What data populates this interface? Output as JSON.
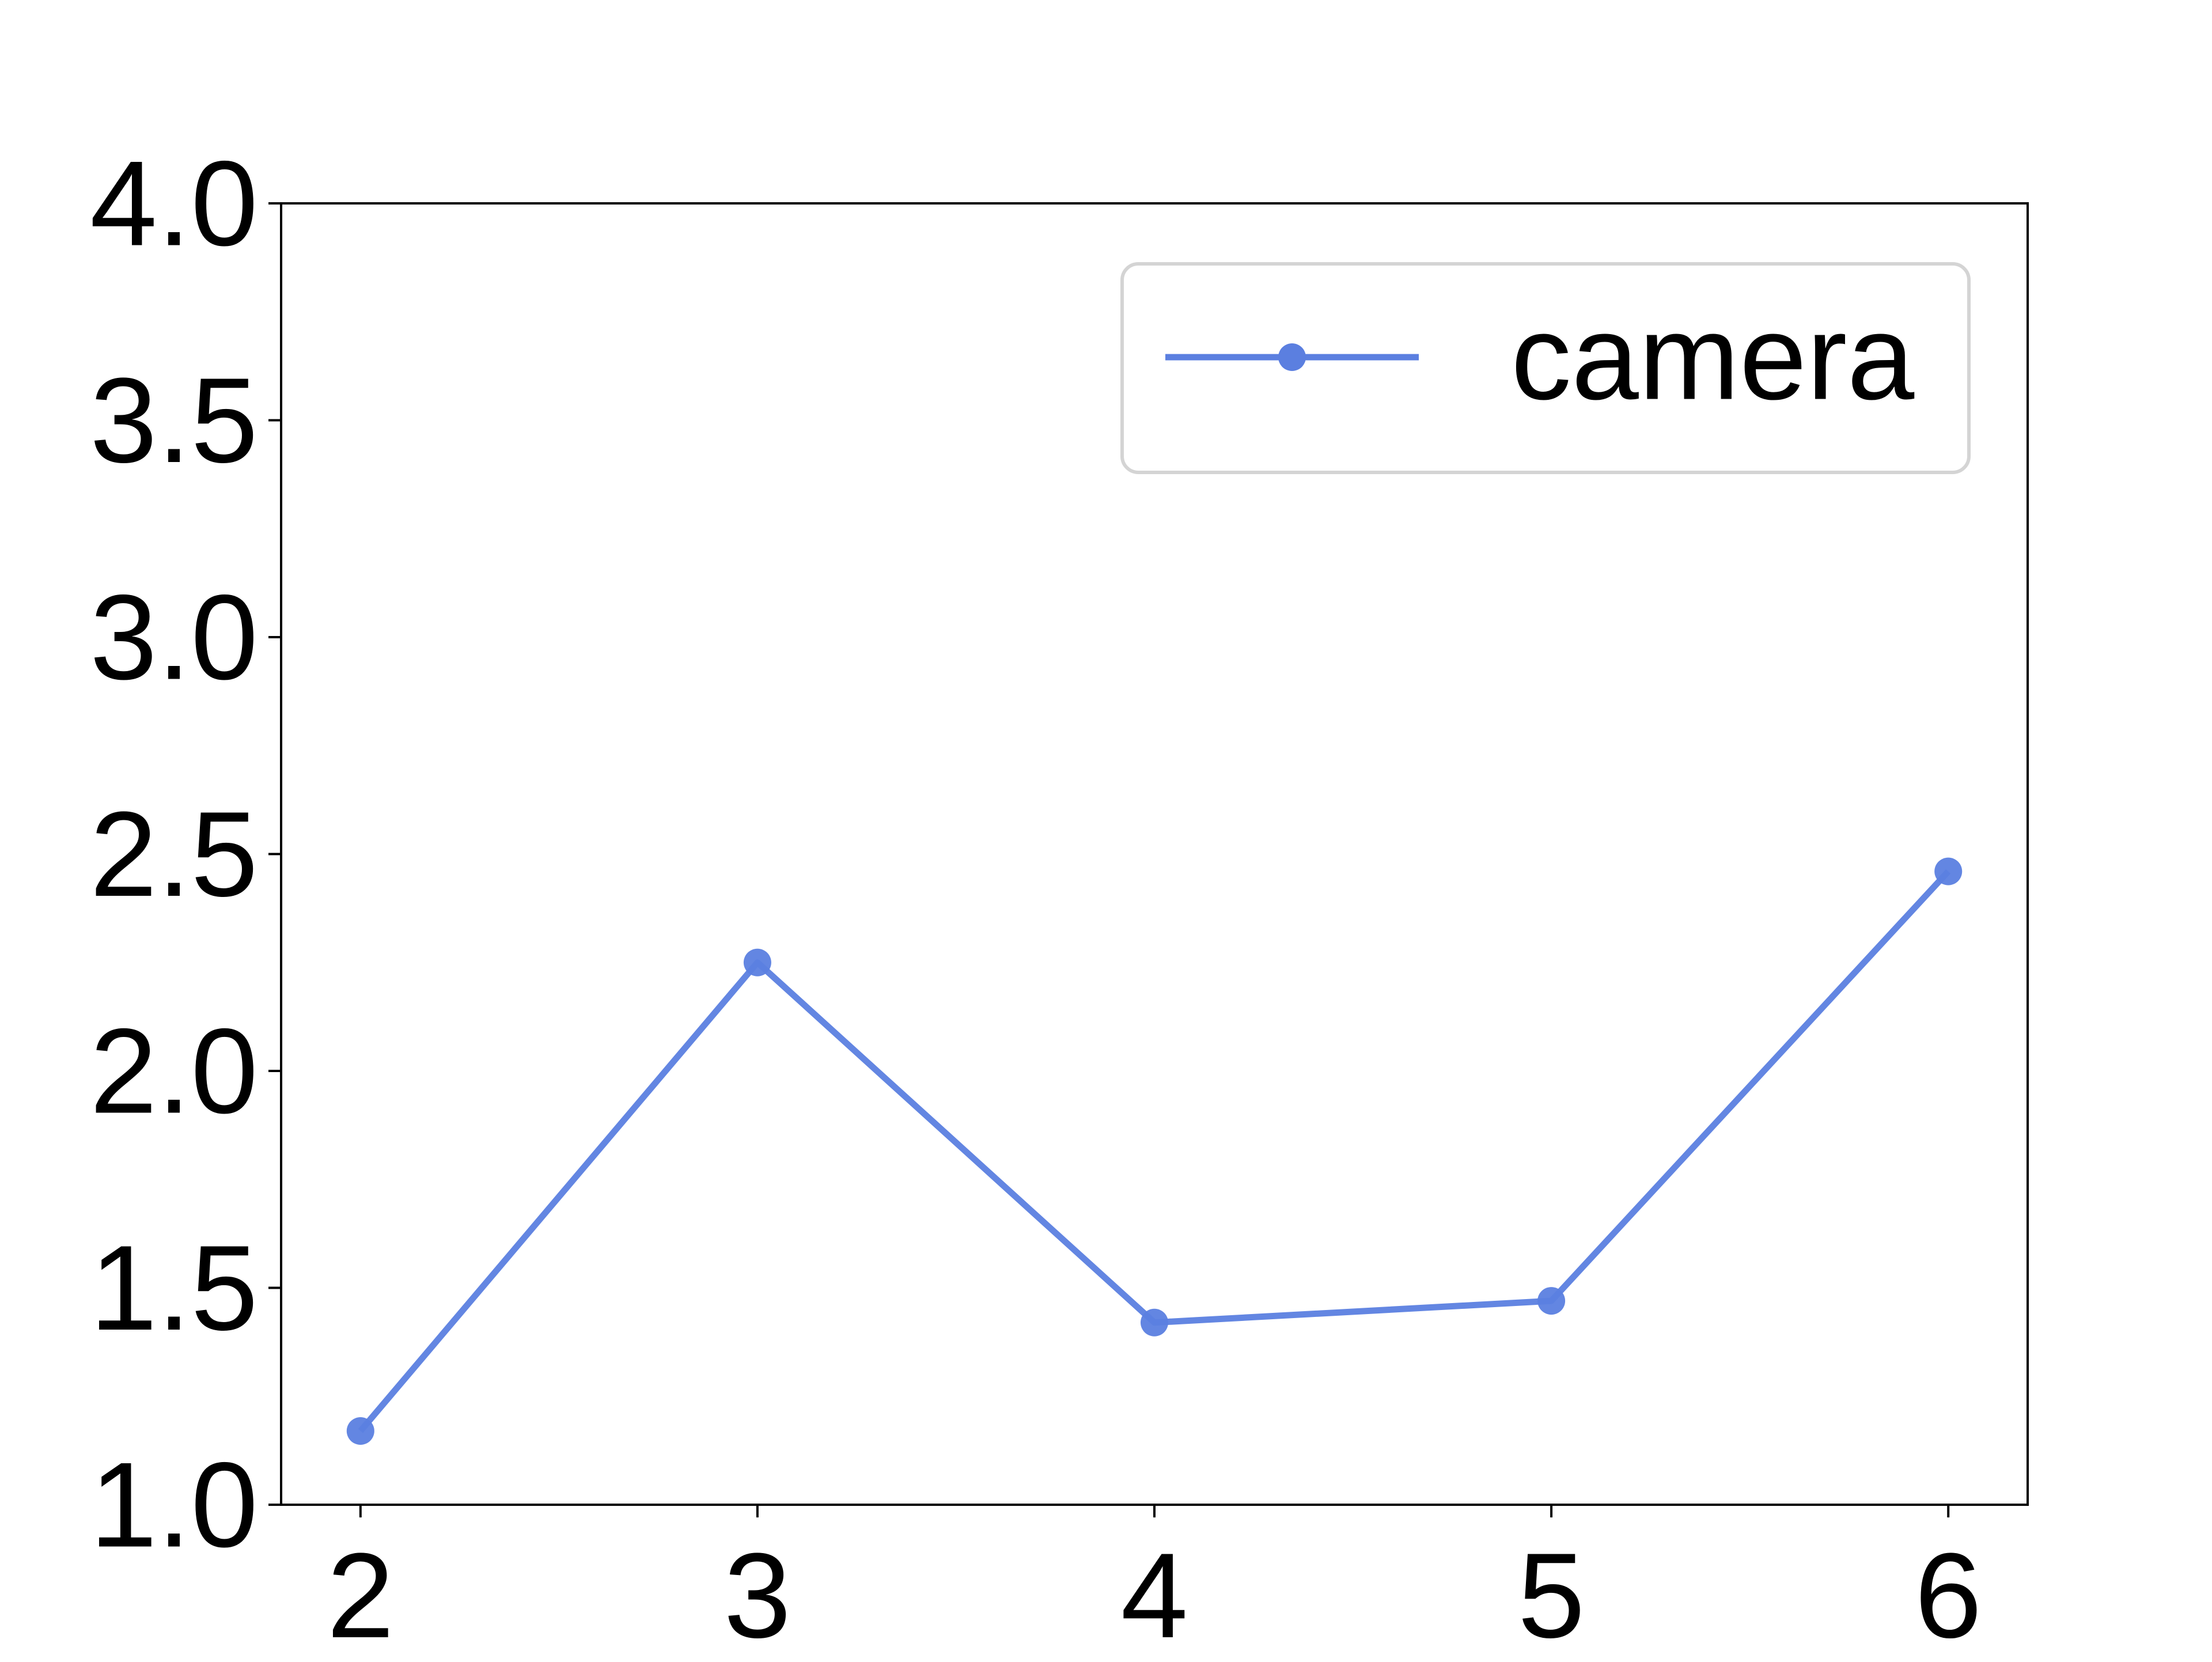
{
  "chart_data": {
    "type": "line",
    "x": [
      2,
      3,
      4,
      5,
      6
    ],
    "series": [
      {
        "name": "camera",
        "values": [
          1.17,
          2.25,
          1.42,
          1.47,
          2.46
        ],
        "color": "#5b7fe0",
        "marker": "circle"
      }
    ],
    "xlim": [
      1.8,
      6.2
    ],
    "ylim": [
      1.0,
      4.0
    ],
    "xticks": [
      2,
      3,
      4,
      5,
      6
    ],
    "xtick_labels": [
      "2",
      "3",
      "4",
      "5",
      "6"
    ],
    "yticks": [
      1.0,
      1.5,
      2.0,
      2.5,
      3.0,
      3.5,
      4.0
    ],
    "ytick_labels": [
      "1.0",
      "1.5",
      "2.0",
      "2.5",
      "3.0",
      "3.5",
      "4.0"
    ],
    "title": "",
    "xlabel": "",
    "ylabel": "",
    "grid": false,
    "legend_position": "top-right"
  }
}
